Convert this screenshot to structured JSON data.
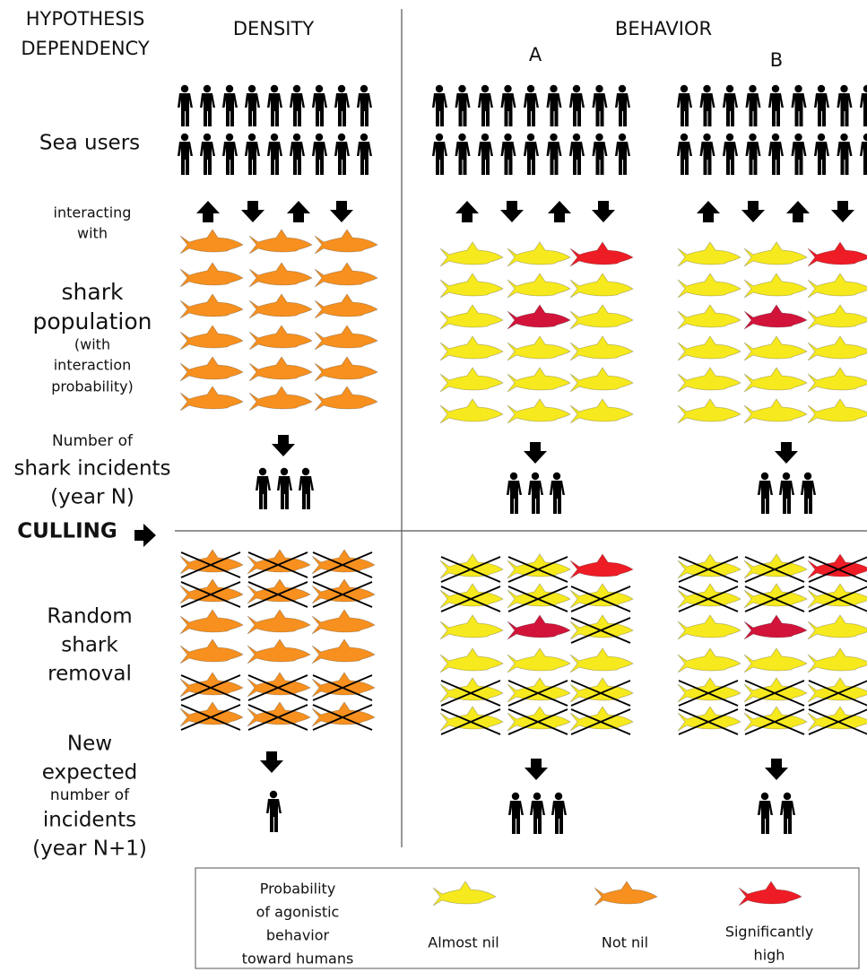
{
  "header": {
    "hypothesis": [
      "HYPOTHESIS",
      "DEPENDENCY"
    ]
  },
  "columns": {
    "density": "DENSITY",
    "behavior": "BEHAVIOR",
    "a": "A",
    "b": "B"
  },
  "rows": {
    "sea_users": "Sea users",
    "interacting": [
      "interacting",
      "with"
    ],
    "population": [
      "shark",
      "population"
    ],
    "population_note": [
      "(with",
      "interaction",
      "probability)"
    ],
    "incidents_small": "Number of",
    "incidents": [
      "shark incidents",
      "(year N)"
    ],
    "culling": "CULLING",
    "removal": [
      "Random",
      "shark",
      "removal"
    ],
    "expected": [
      "New",
      "expected"
    ],
    "expected_small": "number of",
    "expected_incidents": [
      "incidents",
      "(year N+1)"
    ]
  },
  "legend": {
    "title": [
      "Probability",
      "of agonistic",
      "behavior",
      "toward humans"
    ],
    "items": [
      {
        "label": [
          "Almost nil"
        ],
        "color": "#f6e91e"
      },
      {
        "label": [
          "Not nil"
        ],
        "color": "#f7901e"
      },
      {
        "label": [
          "Significantly",
          "high"
        ],
        "color": "#ee1c25"
      }
    ]
  }
}
